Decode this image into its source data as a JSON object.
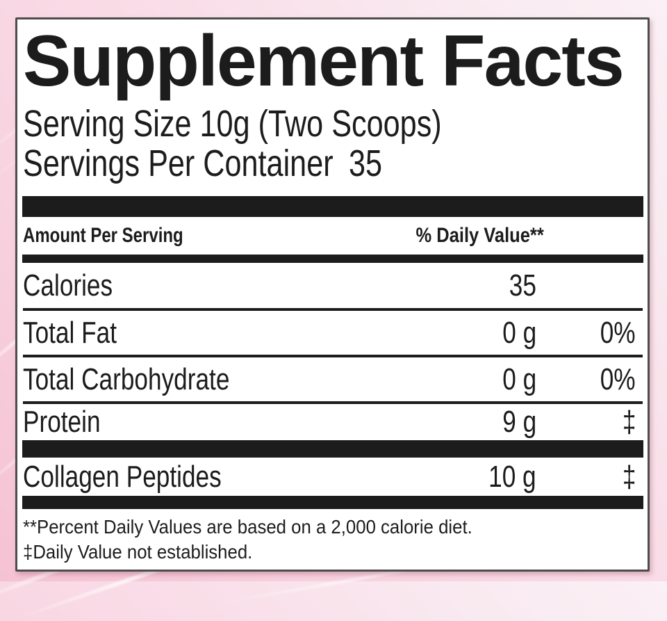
{
  "panel": {
    "title": "Supplement Facts",
    "serving_size": "Serving Size 10g (Two Scoops)",
    "servings_per_container": {
      "label": "Servings Per Container",
      "value": "35"
    },
    "columns": {
      "amount_per_serving": "Amount Per Serving",
      "daily_value": "% Daily Value**"
    },
    "rows": [
      {
        "name": "Calories",
        "amount": "35",
        "dv": ""
      },
      {
        "name": "Total Fat",
        "amount": "0 g",
        "dv": "0%"
      },
      {
        "name": "Total Carbohydrate",
        "amount": "0 g",
        "dv": "0%"
      },
      {
        "name": "Protein",
        "amount": "9 g",
        "dv": "‡"
      },
      {
        "name": "Collagen Peptides",
        "amount": "10 g",
        "dv": "‡"
      }
    ],
    "footnotes": {
      "percent_daily": "**Percent Daily Values are based on a 2,000 calorie diet.",
      "dagger": "‡Daily Value not established."
    }
  },
  "colors": {
    "ink": "#1c1c1c",
    "panel_bg": "#ffffff",
    "panel_border": "#4d4d4d",
    "background_pink_deep": "#f5c2d3",
    "background_pink_light": "#faf0f5",
    "streak": "#ffffff"
  }
}
